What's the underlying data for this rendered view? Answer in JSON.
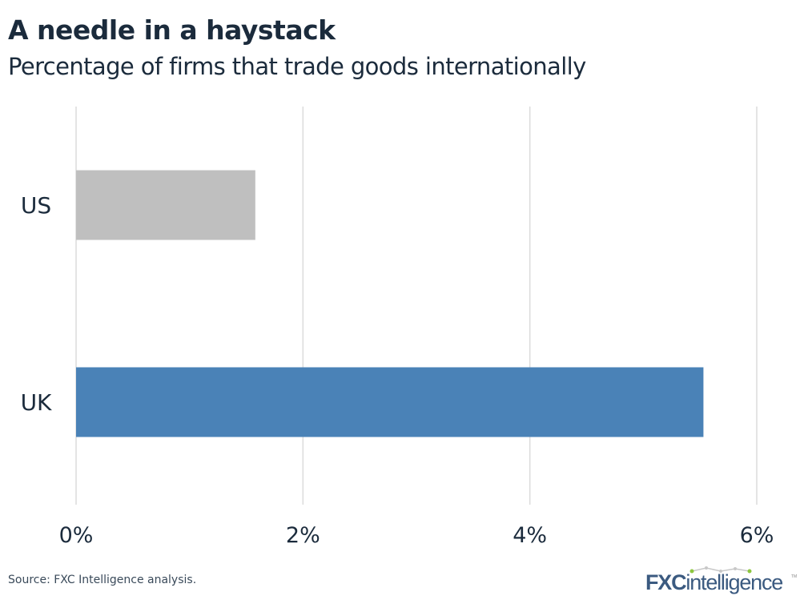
{
  "chart_data": {
    "type": "bar",
    "orientation": "horizontal",
    "title": "A needle in a haystack",
    "subtitle": "Percentage of firms that trade goods internationally",
    "categories": [
      "US",
      "UK"
    ],
    "values": [
      1.58,
      5.53
    ],
    "colors": [
      "#bfbfbf",
      "#4a82b7"
    ],
    "xlim": [
      0,
      6
    ],
    "x_ticks": [
      0,
      2,
      4,
      6
    ],
    "x_tick_labels": [
      "0%",
      "2%",
      "4%",
      "6%"
    ],
    "grid": "vertical",
    "xlabel": "",
    "ylabel": ""
  },
  "footer": {
    "source": "Source: FXC Intelligence analysis.",
    "logo_text": "FXCintelligence"
  }
}
